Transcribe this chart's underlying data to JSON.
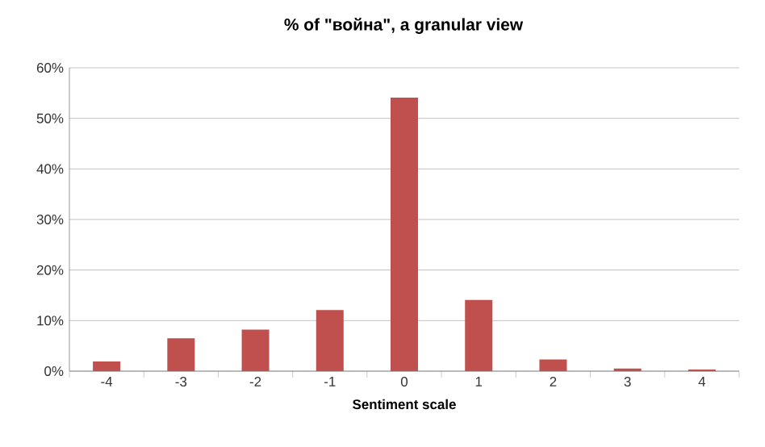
{
  "chart_data": {
    "type": "bar",
    "title": "% of \"война\", a granular view",
    "xlabel": "Sentiment scale",
    "categories": [
      "-4",
      "-3",
      "-2",
      "-1",
      "0",
      "1",
      "2",
      "3",
      "4"
    ],
    "values": [
      1.9,
      6.5,
      8.2,
      12.1,
      54.1,
      14.1,
      2.3,
      0.5,
      0.3
    ],
    "color": "#c0504d",
    "ylim": [
      0,
      60
    ],
    "yticks": [
      {
        "value": 0,
        "label": "0%"
      },
      {
        "value": 10,
        "label": "10%"
      },
      {
        "value": 20,
        "label": "20%"
      },
      {
        "value": 30,
        "label": "30%"
      },
      {
        "value": 40,
        "label": "40%"
      },
      {
        "value": 50,
        "label": "50%"
      },
      {
        "value": 60,
        "label": "60%"
      }
    ],
    "grid": "y"
  }
}
